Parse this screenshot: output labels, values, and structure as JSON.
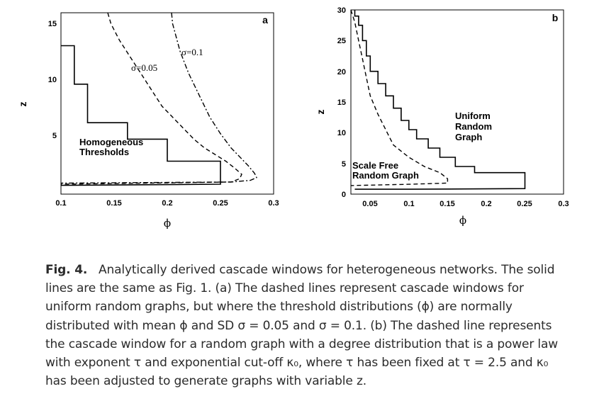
{
  "figure": {
    "panels": [
      {
        "id": "a",
        "panel_letter": "a",
        "x_ticks": [
          "0.1",
          "0.15",
          "0.2",
          "0.25",
          "0.3"
        ],
        "y_ticks": [
          "5",
          "10",
          "15"
        ],
        "xlabel": "ϕ",
        "ylabel": "z",
        "annotations": {
          "solid": "Homogeneous\nThresholds",
          "dash": "σ=0.05",
          "dashdot": "σ=0.1"
        }
      },
      {
        "id": "b",
        "panel_letter": "b",
        "x_ticks": [
          "0.05",
          "0.1",
          "0.15",
          "0.2",
          "0.25",
          "0.3"
        ],
        "y_ticks": [
          "0",
          "5",
          "10",
          "15",
          "20",
          "25",
          "30"
        ],
        "xlabel": "ϕ",
        "ylabel": "z",
        "annotations": {
          "solid": "Uniform\nRandom\nGraph",
          "dash": "Scale Free\nRandom Graph"
        }
      }
    ]
  },
  "chart_data": [
    {
      "type": "line",
      "panel": "a",
      "xlim": [
        0.1,
        0.3
      ],
      "ylim": [
        0,
        16.5
      ],
      "series": [
        {
          "name": "Homogeneous Thresholds",
          "style": "solid",
          "x": [
            0.1,
            0.1125,
            0.1125,
            0.125,
            0.125,
            0.1625,
            0.1625,
            0.2,
            0.2,
            0.25,
            0.25,
            0.25,
            0.1
          ],
          "y": [
            13.5,
            13.5,
            10,
            10,
            6.5,
            6.5,
            5,
            5,
            3,
            3,
            1.2,
            0.9,
            0.8
          ]
        },
        {
          "name": "σ=0.05",
          "style": "dashed",
          "x": [
            0.144,
            0.147,
            0.155,
            0.165,
            0.175,
            0.185,
            0.195,
            0.205,
            0.215,
            0.225,
            0.235,
            0.245,
            0.255,
            0.263,
            0.27,
            0.268,
            0.26,
            0.1
          ],
          "y": [
            16.5,
            15.5,
            14,
            12.5,
            11,
            9.5,
            8,
            7,
            6,
            5,
            4.2,
            3.6,
            3,
            2.4,
            1.8,
            1.4,
            1.1,
            0.9
          ]
        },
        {
          "name": "σ=0.1",
          "style": "dashdot",
          "x": [
            0.204,
            0.205,
            0.212,
            0.22,
            0.23,
            0.24,
            0.25,
            0.26,
            0.268,
            0.276,
            0.282,
            0.284,
            0.278,
            0.26,
            0.1
          ],
          "y": [
            16.5,
            15.5,
            13,
            11,
            9,
            7,
            5.5,
            4.2,
            3.4,
            2.6,
            1.9,
            1.5,
            1.25,
            1.1,
            1.0
          ]
        }
      ]
    },
    {
      "type": "line",
      "panel": "b",
      "xlim": [
        0.025,
        0.3
      ],
      "ylim": [
        0,
        30
      ],
      "series": [
        {
          "name": "Uniform Random Graph",
          "style": "solid",
          "x": [
            0.03,
            0.03,
            0.035,
            0.035,
            0.04,
            0.04,
            0.045,
            0.045,
            0.05,
            0.05,
            0.06,
            0.06,
            0.07,
            0.07,
            0.08,
            0.08,
            0.09,
            0.09,
            0.1,
            0.1,
            0.11,
            0.11,
            0.125,
            0.125,
            0.14,
            0.14,
            0.16,
            0.16,
            0.185,
            0.185,
            0.25,
            0.25,
            0.1,
            0.03
          ],
          "y": [
            30,
            29,
            29,
            27.5,
            27.5,
            25,
            25,
            22.5,
            22.5,
            20,
            20,
            18,
            18,
            16,
            16,
            14,
            14,
            12,
            12,
            10.5,
            10.5,
            9,
            9,
            7.5,
            7.5,
            6,
            6,
            4.5,
            4.5,
            3.5,
            3.5,
            0.9,
            0.8,
            0.8
          ]
        },
        {
          "name": "Scale Free Random Graph",
          "style": "dashed",
          "x": [
            0.025,
            0.03,
            0.035,
            0.04,
            0.045,
            0.05,
            0.06,
            0.07,
            0.08,
            0.1,
            0.12,
            0.14,
            0.15,
            0.15,
            0.1,
            0.025
          ],
          "y": [
            30,
            28,
            25,
            22,
            19,
            16,
            13,
            10.5,
            8,
            6,
            4.5,
            3.5,
            2.5,
            1.8,
            1.6,
            1.4
          ]
        }
      ]
    }
  ],
  "caption": {
    "label": "Fig. 4.",
    "text": "Analytically derived cascade windows for heterogeneous networks. The solid lines are the same as Fig. 1. (a) The dashed lines represent cascade windows for uniform random graphs, but where the threshold distributions (ϕ) are normally distributed with mean ϕ and SD σ = 0.05 and σ = 0.1. (b) The dashed line represents the cascade window for a random graph with a degree distribution that is a power law with exponent τ and exponential cut-off κ₀, where τ has been fixed at τ = 2.5 and κ₀ has been adjusted to generate graphs with variable z."
  }
}
